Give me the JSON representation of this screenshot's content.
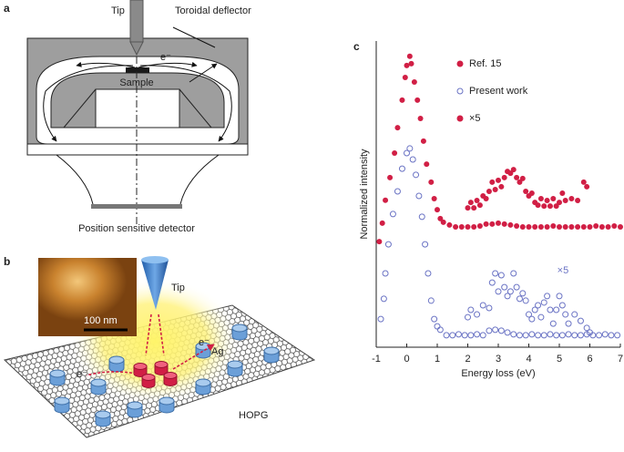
{
  "panels": {
    "a": {
      "label": "a",
      "tip": "Tip",
      "deflector": "Toroidal deflector",
      "electron": "e⁻",
      "sample": "Sample",
      "detector": "Position sensitive detector"
    },
    "b": {
      "label": "b",
      "tip": "Tip",
      "scale": "100 nm",
      "ag": "Ag",
      "electron_left": "e⁻",
      "electron_right": "e⁻",
      "substrate": "HOPG"
    }
  },
  "chart_data": {
    "type": "scatter",
    "panel_label": "c",
    "x_label": "Energy loss (eV)",
    "y_label": "Normalized intensity",
    "xlim": [
      -1,
      7
    ],
    "xticks": [
      -1,
      0,
      1,
      2,
      3,
      4,
      5,
      6,
      7
    ],
    "ylim": [
      0,
      1
    ],
    "series": [
      {
        "name": "Ref. 15",
        "color": "#d11f45",
        "marker": "filled",
        "x": [
          -0.9,
          -0.8,
          -0.7,
          -0.55,
          -0.4,
          -0.3,
          -0.15,
          -0.05,
          0,
          0.1,
          0.15,
          0.25,
          0.35,
          0.45,
          0.55,
          0.65,
          0.8,
          0.9,
          1.0,
          1.1,
          1.2,
          1.4,
          1.6,
          1.8,
          2.0,
          2.2,
          2.4,
          2.6,
          2.8,
          3.0,
          3.2,
          3.4,
          3.6,
          3.8,
          4.0,
          4.2,
          4.4,
          4.6,
          4.8,
          5.0,
          5.2,
          5.4,
          5.6,
          5.8,
          6.0,
          6.2,
          6.4,
          6.6,
          6.8,
          7.0
        ],
        "values": [
          0.345,
          0.405,
          0.48,
          0.554,
          0.634,
          0.717,
          0.807,
          0.881,
          0.92,
          0.95,
          0.926,
          0.866,
          0.807,
          0.747,
          0.673,
          0.598,
          0.539,
          0.485,
          0.449,
          0.42,
          0.408,
          0.399,
          0.393,
          0.393,
          0.393,
          0.393,
          0.396,
          0.402,
          0.402,
          0.405,
          0.402,
          0.399,
          0.396,
          0.393,
          0.393,
          0.393,
          0.393,
          0.393,
          0.396,
          0.393,
          0.393,
          0.393,
          0.393,
          0.393,
          0.393,
          0.396,
          0.393,
          0.393,
          0.396,
          0.393
        ]
      },
      {
        "name": "Present work",
        "color": "#6a73c4",
        "marker": "open",
        "x": [
          -0.85,
          -0.75,
          -0.7,
          -0.6,
          -0.45,
          -0.3,
          -0.15,
          0,
          0.1,
          0.2,
          0.3,
          0.4,
          0.5,
          0.6,
          0.7,
          0.8,
          0.9,
          1.0,
          1.1,
          1.3,
          1.5,
          1.7,
          1.9,
          2.1,
          2.3,
          2.5,
          2.7,
          2.9,
          3.1,
          3.3,
          3.5,
          3.7,
          3.9,
          4.1,
          4.3,
          4.5,
          4.7,
          4.9,
          5.1,
          5.3,
          5.5,
          5.7,
          5.9,
          6.1,
          6.3,
          6.5,
          6.7,
          6.9
        ],
        "values": [
          0.092,
          0.158,
          0.241,
          0.336,
          0.435,
          0.509,
          0.583,
          0.634,
          0.649,
          0.613,
          0.563,
          0.494,
          0.426,
          0.336,
          0.241,
          0.152,
          0.092,
          0.068,
          0.057,
          0.039,
          0.039,
          0.042,
          0.039,
          0.039,
          0.042,
          0.039,
          0.054,
          0.057,
          0.054,
          0.048,
          0.042,
          0.039,
          0.039,
          0.042,
          0.039,
          0.039,
          0.042,
          0.039,
          0.039,
          0.042,
          0.039,
          0.039,
          0.042,
          0.039,
          0.039,
          0.042,
          0.039,
          0.039
        ]
      },
      {
        "name": "×5",
        "color": "#d11f45",
        "marker": "filled",
        "x": [
          2.0,
          2.1,
          2.2,
          2.3,
          2.4,
          2.5,
          2.6,
          2.7,
          2.8,
          2.9,
          3.0,
          3.1,
          3.2,
          3.3,
          3.4,
          3.5,
          3.6,
          3.7,
          3.8,
          3.9,
          4.0,
          4.1,
          4.2,
          4.3,
          4.4,
          4.5,
          4.6,
          4.7,
          4.8,
          4.9,
          5.0,
          5.1,
          5.2,
          5.4,
          5.6,
          5.8,
          5.9
        ],
        "values": [
          0.455,
          0.473,
          0.455,
          0.479,
          0.464,
          0.494,
          0.485,
          0.509,
          0.539,
          0.515,
          0.545,
          0.524,
          0.554,
          0.574,
          0.568,
          0.58,
          0.554,
          0.539,
          0.551,
          0.509,
          0.494,
          0.503,
          0.473,
          0.464,
          0.485,
          0.461,
          0.479,
          0.461,
          0.485,
          0.461,
          0.473,
          0.503,
          0.479,
          0.485,
          0.479,
          0.539,
          0.524
        ]
      },
      {
        "name": "×5",
        "color": "#6a73c4",
        "marker": "open",
        "x": [
          2.0,
          2.1,
          2.3,
          2.5,
          2.7,
          2.8,
          2.9,
          3.0,
          3.1,
          3.2,
          3.3,
          3.4,
          3.5,
          3.6,
          3.7,
          3.8,
          3.9,
          4.0,
          4.1,
          4.2,
          4.3,
          4.4,
          4.5,
          4.6,
          4.7,
          4.8,
          4.9,
          5.0,
          5.1,
          5.2,
          5.3,
          5.5,
          5.7,
          5.9,
          6.0
        ],
        "values": [
          0.098,
          0.122,
          0.107,
          0.137,
          0.128,
          0.211,
          0.241,
          0.182,
          0.235,
          0.196,
          0.167,
          0.182,
          0.241,
          0.196,
          0.158,
          0.176,
          0.152,
          0.107,
          0.092,
          0.122,
          0.137,
          0.098,
          0.146,
          0.167,
          0.122,
          0.077,
          0.122,
          0.167,
          0.137,
          0.107,
          0.077,
          0.107,
          0.086,
          0.063,
          0.048
        ]
      }
    ]
  }
}
